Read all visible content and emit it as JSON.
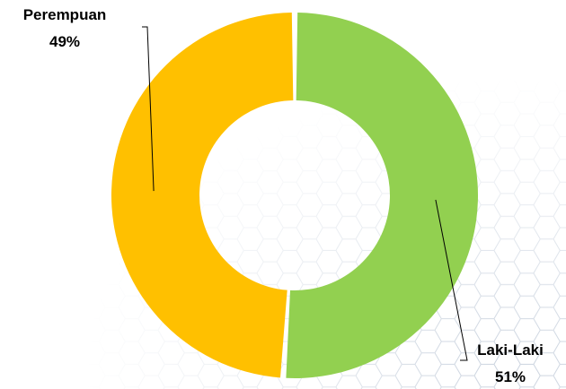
{
  "chart_data": {
    "type": "pie",
    "donut": true,
    "title": "",
    "categories": [
      "Laki-Laki",
      "Perempuan"
    ],
    "values": [
      51,
      49
    ],
    "value_labels": [
      "51%",
      "49%"
    ],
    "colors": [
      "#92D050",
      "#FFC000"
    ],
    "legend": "none",
    "background_pattern": "light-gray-hexagon-mesh"
  }
}
